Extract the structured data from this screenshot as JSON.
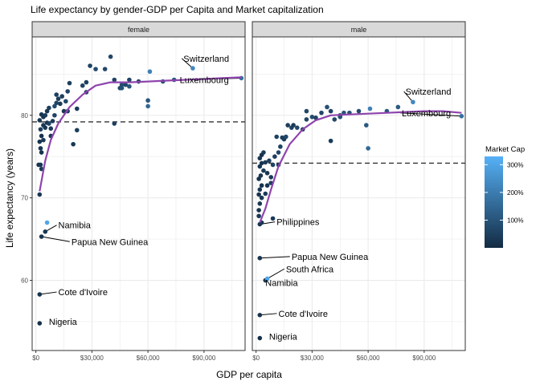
{
  "chart_data": {
    "type": "scatter",
    "title": "Life expectancy by gender-GDP per Capita and Market capitalization",
    "xlabel": "GDP per capita",
    "ylabel": "Life expectancy (years)",
    "xlim": [
      -2000,
      112000
    ],
    "ylim": [
      51.5,
      89.5
    ],
    "x_ticks": [
      0,
      30000,
      60000,
      90000
    ],
    "x_tick_labels": [
      "$0",
      "$30,000",
      "$60,000",
      "$90,000"
    ],
    "y_ticks": [
      60,
      70,
      80
    ],
    "y_tick_labels": [
      "60",
      "70",
      "80"
    ],
    "grid": true,
    "legend": {
      "title": "Market Cap",
      "position": "right",
      "range": [
        0,
        330
      ],
      "ticks": [
        100,
        200,
        300
      ],
      "tick_labels": [
        "100%",
        "200%",
        "300%"
      ],
      "color_low": "#132B43",
      "color_high": "#56B1F7"
    },
    "colors": {
      "smooth_line": "#8E44AD",
      "reference_line": "#333333",
      "strip_bg": "#D9D9D9",
      "panel_border": "#333333",
      "grid": "#EBEBEB"
    },
    "panels": [
      {
        "name": "female",
        "hline": 79.2,
        "points": [
          [
            2000,
            54.8,
            10
          ],
          [
            2000,
            58.3,
            20
          ],
          [
            3000,
            65.3,
            20
          ],
          [
            5000,
            65.9,
            30
          ],
          [
            6000,
            67.0,
            300
          ],
          [
            2000,
            70.4,
            30
          ],
          [
            1500,
            74.0,
            20
          ],
          [
            2500,
            74.0,
            30
          ],
          [
            3000,
            73.5,
            40
          ],
          [
            3000,
            75.5,
            20
          ],
          [
            2500,
            76.0,
            30
          ],
          [
            2000,
            76.8,
            20
          ],
          [
            4000,
            77.0,
            40
          ],
          [
            3000,
            77.5,
            20
          ],
          [
            5000,
            78.5,
            30
          ],
          [
            2500,
            78.3,
            50
          ],
          [
            4000,
            78.8,
            30
          ],
          [
            6000,
            79.1,
            20
          ],
          [
            7000,
            79.0,
            60
          ],
          [
            8000,
            78.4,
            40
          ],
          [
            2000,
            79.4,
            30
          ],
          [
            4000,
            79.8,
            20
          ],
          [
            5000,
            80.0,
            40
          ],
          [
            6000,
            80.5,
            30
          ],
          [
            7000,
            80.9,
            50
          ],
          [
            3000,
            80.1,
            30
          ],
          [
            8000,
            77.5,
            30
          ],
          [
            9000,
            79.3,
            40
          ],
          [
            10000,
            80.0,
            60
          ],
          [
            10000,
            81.1,
            80
          ],
          [
            11000,
            81.5,
            60
          ],
          [
            11000,
            82.5,
            50
          ],
          [
            12000,
            82.0,
            40
          ],
          [
            14000,
            82.3,
            50
          ],
          [
            16000,
            81.7,
            70
          ],
          [
            17000,
            82.9,
            60
          ],
          [
            18000,
            83.9,
            50
          ],
          [
            13000,
            81.4,
            40
          ],
          [
            15000,
            80.5,
            30
          ],
          [
            17000,
            80.5,
            50
          ],
          [
            20000,
            76.5,
            30
          ],
          [
            22000,
            78.2,
            50
          ],
          [
            22000,
            80.8,
            40
          ],
          [
            25000,
            83.6,
            60
          ],
          [
            27000,
            84.0,
            50
          ],
          [
            27000,
            82.8,
            40
          ],
          [
            29000,
            86.0,
            60
          ],
          [
            32000,
            85.6,
            80
          ],
          [
            37000,
            85.6,
            70
          ],
          [
            40000,
            87.1,
            70
          ],
          [
            42000,
            84.3,
            60
          ],
          [
            42000,
            79.0,
            50
          ],
          [
            45000,
            83.3,
            70
          ],
          [
            46000,
            83.7,
            80
          ],
          [
            46000,
            83.3,
            90
          ],
          [
            48000,
            83.7,
            70
          ],
          [
            50000,
            83.5,
            100
          ],
          [
            50000,
            84.3,
            60
          ],
          [
            55000,
            84.1,
            70
          ],
          [
            60000,
            81.8,
            110
          ],
          [
            60000,
            81.1,
            150
          ],
          [
            61000,
            85.3,
            210
          ],
          [
            68000,
            84.1,
            90
          ],
          [
            74000,
            84.3,
            100
          ],
          [
            84000,
            85.7,
            230
          ],
          [
            110000,
            84.5,
            170
          ]
        ],
        "smooth": [
          [
            2000,
            70.8
          ],
          [
            5000,
            74.5
          ],
          [
            8000,
            77.0
          ],
          [
            12000,
            79.0
          ],
          [
            18000,
            81.0
          ],
          [
            25000,
            82.5
          ],
          [
            32000,
            83.6
          ],
          [
            40000,
            84.0
          ],
          [
            50000,
            84.0
          ],
          [
            60000,
            84.1
          ],
          [
            70000,
            84.2
          ],
          [
            80000,
            84.3
          ],
          [
            90000,
            84.4
          ],
          [
            100000,
            84.5
          ],
          [
            110000,
            84.6
          ]
        ],
        "labels": [
          {
            "text": "Switzerland",
            "x": 84000,
            "y": 85.7,
            "tx": 79000,
            "ty": 86.5
          },
          {
            "text": "Luxembourg",
            "x": 110000,
            "y": 84.5,
            "tx": 77000,
            "ty": 83.9
          },
          {
            "text": "Namibia",
            "x": 5000,
            "y": 65.9,
            "tx": 12000,
            "ty": 66.3
          },
          {
            "text": "Papua New Guinea",
            "x": 3000,
            "y": 65.3,
            "tx": 19000,
            "ty": 64.3
          },
          {
            "text": "Cote d'Ivoire",
            "x": 2000,
            "y": 58.3,
            "tx": 12000,
            "ty": 58.2
          },
          {
            "text": "Nigeria",
            "x": 2000,
            "y": 54.8,
            "tx": 7000,
            "ty": 54.6
          }
        ]
      },
      {
        "name": "male",
        "hline": 74.2,
        "points": [
          [
            2000,
            53.0,
            10
          ],
          [
            2000,
            55.8,
            20
          ],
          [
            2000,
            62.7,
            20
          ],
          [
            5000,
            60.0,
            30
          ],
          [
            6000,
            60.2,
            300
          ],
          [
            2000,
            66.8,
            20
          ],
          [
            1500,
            67.8,
            30
          ],
          [
            3000,
            67.0,
            30
          ],
          [
            9000,
            67.5,
            40
          ],
          [
            1500,
            68.5,
            20
          ],
          [
            2000,
            69.3,
            30
          ],
          [
            3000,
            70.0,
            30
          ],
          [
            5000,
            70.5,
            40
          ],
          [
            1500,
            70.4,
            20
          ],
          [
            2000,
            71.0,
            30
          ],
          [
            3000,
            71.5,
            20
          ],
          [
            6000,
            71.5,
            30
          ],
          [
            8000,
            71.8,
            50
          ],
          [
            1500,
            72.3,
            20
          ],
          [
            2500,
            72.7,
            30
          ],
          [
            4000,
            73.3,
            40
          ],
          [
            6000,
            73.0,
            30
          ],
          [
            8000,
            72.5,
            40
          ],
          [
            2000,
            73.8,
            30
          ],
          [
            3000,
            74.2,
            20
          ],
          [
            5000,
            74.3,
            40
          ],
          [
            7000,
            74.5,
            50
          ],
          [
            9000,
            74.0,
            60
          ],
          [
            10000,
            75.0,
            50
          ],
          [
            2000,
            74.8,
            30
          ],
          [
            3000,
            75.2,
            20
          ],
          [
            4000,
            75.5,
            40
          ],
          [
            12000,
            74.0,
            40
          ],
          [
            12000,
            75.5,
            70
          ],
          [
            13000,
            76.2,
            60
          ],
          [
            14000,
            77.3,
            50
          ],
          [
            15000,
            77.1,
            40
          ],
          [
            11000,
            77.4,
            60
          ],
          [
            16000,
            77.4,
            70
          ],
          [
            17000,
            78.8,
            50
          ],
          [
            19000,
            78.5,
            60
          ],
          [
            20000,
            78.8,
            40
          ],
          [
            22000,
            78.5,
            70
          ],
          [
            25000,
            78.3,
            50
          ],
          [
            27000,
            79.5,
            60
          ],
          [
            27000,
            80.5,
            70
          ],
          [
            30000,
            79.8,
            80
          ],
          [
            32000,
            79.7,
            60
          ],
          [
            35000,
            80.3,
            70
          ],
          [
            38000,
            81.0,
            90
          ],
          [
            40000,
            80.5,
            60
          ],
          [
            40000,
            76.9,
            40
          ],
          [
            42000,
            79.5,
            70
          ],
          [
            45000,
            80.0,
            80
          ],
          [
            45000,
            79.8,
            90
          ],
          [
            47000,
            80.3,
            100
          ],
          [
            50000,
            80.3,
            90
          ],
          [
            55000,
            80.5,
            80
          ],
          [
            59000,
            78.8,
            110
          ],
          [
            60000,
            76.0,
            150
          ],
          [
            61000,
            80.8,
            210
          ],
          [
            70000,
            80.5,
            100
          ],
          [
            76000,
            81.0,
            120
          ],
          [
            84000,
            81.6,
            230
          ],
          [
            110000,
            79.9,
            170
          ]
        ],
        "smooth": [
          [
            2000,
            67.0
          ],
          [
            5000,
            68.7
          ],
          [
            8000,
            71.0
          ],
          [
            12000,
            73.8
          ],
          [
            18000,
            76.5
          ],
          [
            25000,
            78.3
          ],
          [
            32000,
            79.4
          ],
          [
            40000,
            80.0
          ],
          [
            50000,
            80.1
          ],
          [
            60000,
            80.2
          ],
          [
            70000,
            80.3
          ],
          [
            80000,
            80.4
          ],
          [
            90000,
            80.5
          ],
          [
            100000,
            80.5
          ],
          [
            110000,
            80.3
          ]
        ],
        "labels": [
          {
            "text": "Switzerland",
            "x": 84000,
            "y": 81.6,
            "tx": 80000,
            "ty": 82.5
          },
          {
            "text": "Luxembourg",
            "x": 110000,
            "y": 79.9,
            "tx": 78000,
            "ty": 79.9
          },
          {
            "text": "Philippines",
            "x": 2000,
            "y": 66.8,
            "tx": 11000,
            "ty": 66.7
          },
          {
            "text": "Papua New Guinea",
            "x": 2000,
            "y": 62.7,
            "tx": 19000,
            "ty": 62.5
          },
          {
            "text": "South Africa",
            "x": 6000,
            "y": 60.2,
            "tx": 16000,
            "ty": 61.0
          },
          {
            "text": "Namibia",
            "x": 5000,
            "y": 60.0,
            "tx": 5000,
            "ty": 59.3
          },
          {
            "text": "Cote d'Ivoire",
            "x": 2000,
            "y": 55.8,
            "tx": 12000,
            "ty": 55.6
          },
          {
            "text": "Nigeria",
            "x": 2000,
            "y": 53.0,
            "tx": 7000,
            "ty": 52.8
          }
        ]
      }
    ]
  }
}
